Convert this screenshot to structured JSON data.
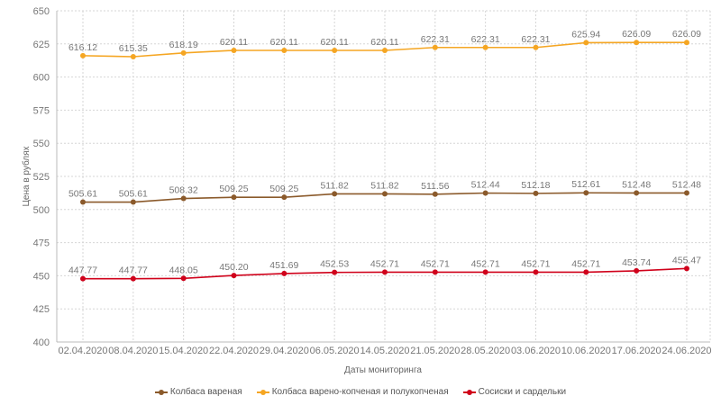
{
  "chart_data": {
    "type": "line",
    "title": "",
    "xlabel": "Даты мониторинга",
    "ylabel": "Цена в рублях",
    "ylim": [
      400,
      650
    ],
    "yticks": [
      400,
      425,
      450,
      475,
      500,
      525,
      550,
      575,
      600,
      625,
      650
    ],
    "grid": true,
    "legend_position": "bottom",
    "categories": [
      "02.04.2020",
      "08.04.2020",
      "15.04.2020",
      "22.04.2020",
      "29.04.2020",
      "06.05.2020",
      "14.05.2020",
      "21.05.2020",
      "28.05.2020",
      "03.06.2020",
      "10.06.2020",
      "17.06.2020",
      "24.06.2020"
    ],
    "series": [
      {
        "name": "Колбаса вареная",
        "color": "#8B5A2B",
        "values": [
          505.61,
          505.61,
          508.32,
          509.25,
          509.25,
          511.82,
          511.82,
          511.56,
          512.44,
          512.18,
          512.61,
          512.48,
          512.48
        ]
      },
      {
        "name": "Колбаса варено-копченая и полукопченая",
        "color": "#F5A623",
        "values": [
          616.12,
          615.35,
          618.19,
          620.11,
          620.11,
          620.11,
          620.11,
          622.31,
          622.31,
          622.31,
          625.94,
          626.09,
          626.09
        ]
      },
      {
        "name": "Сосиски и сардельки",
        "color": "#D0021B",
        "values": [
          447.77,
          447.77,
          448.05,
          450.2,
          451.69,
          452.53,
          452.71,
          452.71,
          452.71,
          452.71,
          452.71,
          453.74,
          455.47
        ]
      }
    ]
  }
}
